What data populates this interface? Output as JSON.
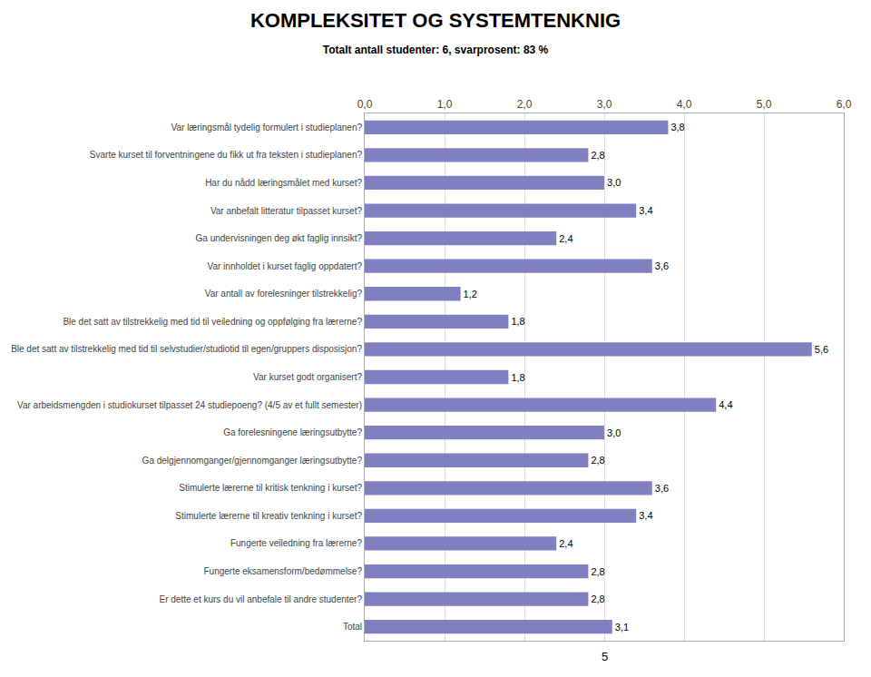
{
  "chart_data": {
    "type": "bar",
    "orientation": "horizontal",
    "title": "KOMPLEKSITET OG SYSTEMTENKNIG",
    "subtitle": "Totalt antall studenter: 6, svarprosent: 83 %",
    "annotations": [
      "5"
    ],
    "categories": [
      "Var læringsmål tydelig formulert i studieplanen?",
      "Svarte kurset til forventningene du fikk ut fra teksten i studieplanen?",
      "Har du nådd læringsmålet med kurset?",
      "Var anbefalt litteratur tilpasset kurset?",
      "Ga undervisningen deg økt faglig innsikt?",
      "Var innholdet i kurset faglig oppdatert?",
      "Var antall av forelesninger tilstrekkelig?",
      "Ble det satt av tilstrekkelig med tid til veiledning og oppfølging fra lærerne?",
      "Ble det satt av tilstrekkelig med tid til selvstudier/studiotid til egen/gruppers disposisjon?",
      "Var kurset godt organisert?",
      "Var arbeidsmengden i studiokurset tilpasset 24 studiepoeng? (4/5 av et fullt semester)",
      "Ga forelesningene læringsutbytte?",
      "Ga delgjennomganger/gjennomganger læringsutbytte?",
      "Stimulerte lærerne til kritisk tenkning i kurset?",
      "Stimulerte lærerne til kreativ tenkning i kurset?",
      "Fungerte veiledning fra lærerne?",
      "Fungerte eksamensform/bedømmelse?",
      "Er dette et kurs du vil anbefale til andre studenter?",
      "Total"
    ],
    "values": [
      3.8,
      2.8,
      3.0,
      3.4,
      2.4,
      3.6,
      1.2,
      1.8,
      5.6,
      1.8,
      4.4,
      3.0,
      2.8,
      3.6,
      3.4,
      2.4,
      2.8,
      2.8,
      3.1
    ],
    "value_labels": [
      "3,8",
      "2,8",
      "3,0",
      "3,4",
      "2,4",
      "3,6",
      "1,2",
      "1,8",
      "5,6",
      "1,8",
      "4,4",
      "3,0",
      "2,8",
      "3,6",
      "3,4",
      "2,4",
      "2,8",
      "2,8",
      "3,1"
    ],
    "data_labels": true,
    "color": "#8080c0",
    "xlim": [
      0,
      6.0
    ],
    "xticks": [
      {
        "value": 0.0,
        "label": "0,0"
      },
      {
        "value": 1.0,
        "label": "1,0"
      },
      {
        "value": 2.0,
        "label": "2,0"
      },
      {
        "value": 3.0,
        "label": "3,0"
      },
      {
        "value": 4.0,
        "label": "4,0"
      },
      {
        "value": 5.0,
        "label": "5,0"
      },
      {
        "value": 6.0,
        "label": "6,0"
      }
    ],
    "grid": true
  }
}
